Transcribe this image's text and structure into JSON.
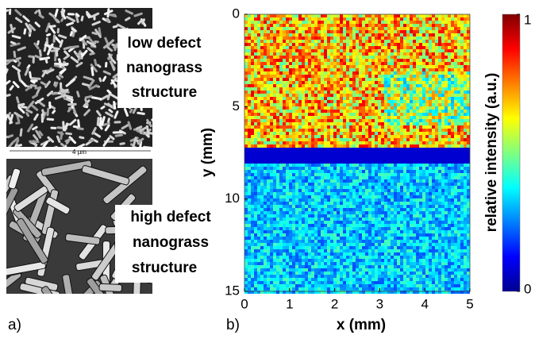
{
  "panel_a": {
    "label": "a)",
    "top_caption": [
      "low defect",
      "nanograss",
      "structure"
    ],
    "scale_bar": "4 µm",
    "bottom_caption": [
      "high defect",
      "nanograss",
      "structure"
    ]
  },
  "chart_data": {
    "type": "heatmap",
    "label": "b)",
    "xlabel": "x (mm)",
    "ylabel": "y (mm)",
    "xlim": [
      0,
      5
    ],
    "xticks": [
      0,
      1,
      2,
      3,
      4,
      5
    ],
    "ylim": [
      0,
      15
    ],
    "y_inverted": true,
    "yticks": [
      0,
      5,
      10,
      15
    ],
    "colorbar": {
      "label": "relative intensity (a.u.)",
      "lim": [
        0,
        1
      ],
      "ticks": [
        0,
        1
      ]
    }
  }
}
